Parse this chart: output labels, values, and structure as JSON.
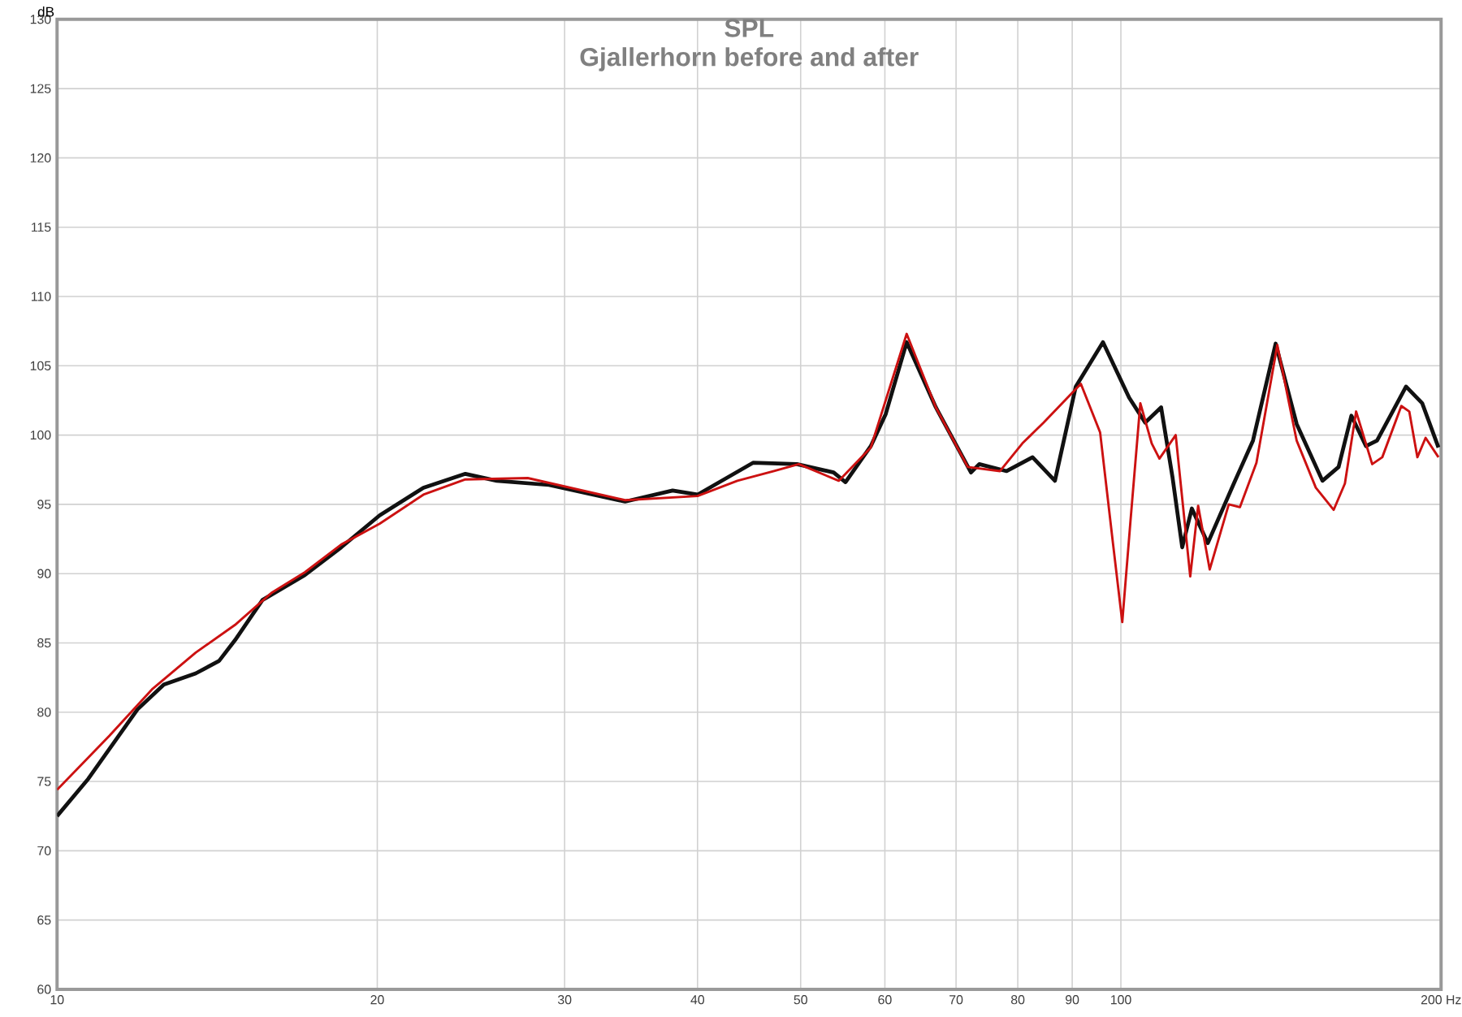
{
  "chart_data": {
    "type": "line",
    "title": "SPL",
    "subtitle": "Gjallerhorn before and after",
    "ylabel": "dB",
    "log": "x",
    "grid": true,
    "xlim": [
      10,
      200
    ],
    "ylim": [
      60,
      130
    ],
    "xticks": [
      10,
      20,
      30,
      40,
      50,
      60,
      70,
      80,
      90,
      100,
      {
        "value": 200,
        "label": "200 Hz"
      }
    ],
    "yticks": [
      60,
      65,
      70,
      75,
      80,
      85,
      90,
      95,
      100,
      105,
      110,
      115,
      120,
      125,
      130
    ],
    "series": [
      {
        "color": "#111111",
        "x": [
          10.0,
          10.7,
          11.9,
          12.6,
          13.5,
          14.2,
          14.7,
          15.6,
          17.1,
          18.5,
          20.1,
          22.1,
          24.2,
          25.9,
          29.0,
          34.2,
          37.9,
          40.0,
          45.1,
          49.6,
          53.7,
          55.1,
          58.2,
          60.1,
          62.9,
          67.0,
          72.3,
          73.6,
          78.1,
          82.6,
          86.7,
          90.7,
          96.2,
          101.8,
          105.4,
          109.1,
          111.8,
          114.2,
          116.6,
          120.7,
          127.7,
          133.1,
          139.8,
          146.3,
          154.7,
          160.2,
          164.7,
          170.0,
          174.1,
          185.4,
          192.0,
          198.9
        ],
        "values": [
          72.5,
          75.2,
          80.2,
          82.0,
          82.8,
          83.7,
          85.2,
          88.1,
          89.9,
          91.9,
          94.2,
          96.2,
          97.2,
          96.7,
          96.4,
          95.2,
          96.0,
          95.7,
          98.0,
          97.9,
          97.3,
          96.6,
          99.2,
          101.5,
          106.7,
          102.0,
          97.3,
          97.9,
          97.4,
          98.4,
          96.7,
          103.5,
          106.7,
          102.7,
          100.9,
          102.0,
          97.0,
          91.9,
          94.7,
          92.2,
          96.5,
          99.6,
          106.6,
          100.8,
          96.7,
          97.7,
          101.4,
          99.2,
          99.6,
          103.5,
          102.3,
          99.1
        ]
      },
      {
        "color": "#cc1111",
        "x": [
          10.0,
          11.2,
          12.3,
          13.5,
          14.7,
          15.9,
          17.1,
          18.5,
          20.1,
          22.1,
          24.2,
          27.7,
          34.2,
          40.0,
          43.6,
          47.2,
          49.8,
          54.3,
          58.2,
          62.9,
          67.0,
          71.8,
          77.0,
          80.8,
          84.6,
          91.7,
          95.6,
          98.3,
          100.3,
          102.1,
          104.3,
          106.9,
          108.7,
          112.6,
          116.2,
          118.2,
          121.2,
          126.3,
          129.4,
          134.1,
          140.3,
          146.3,
          152.5,
          158.5,
          162.4,
          166.4,
          172.3,
          176.1,
          183.5,
          186.7,
          190.0,
          193.4,
          198.9
        ],
        "values": [
          74.4,
          78.3,
          81.7,
          84.3,
          86.3,
          88.6,
          90.1,
          92.1,
          93.6,
          95.7,
          96.8,
          96.9,
          95.3,
          95.6,
          96.7,
          97.4,
          97.9,
          96.7,
          99.1,
          107.3,
          102.0,
          97.7,
          97.4,
          99.4,
          100.9,
          103.7,
          100.2,
          92.2,
          86.5,
          93.8,
          102.3,
          99.4,
          98.3,
          100.0,
          89.8,
          94.9,
          90.3,
          95.0,
          94.8,
          98.0,
          106.5,
          99.6,
          96.2,
          94.6,
          96.5,
          101.7,
          97.9,
          98.4,
          102.1,
          101.7,
          98.4,
          99.8,
          98.4
        ]
      }
    ]
  }
}
